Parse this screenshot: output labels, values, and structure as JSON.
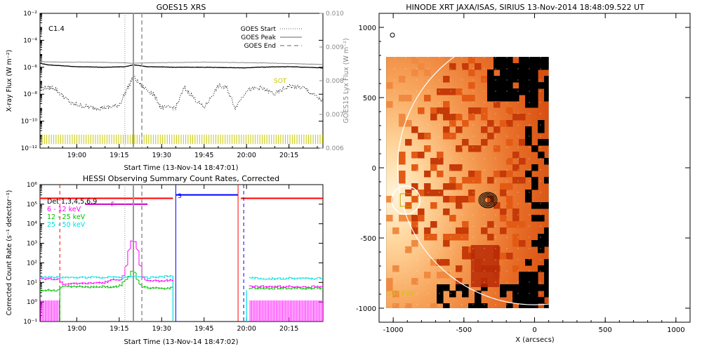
{
  "chart_data": [
    {
      "type": "line",
      "title": "GOES15 XRS",
      "xlabel": "Start Time (13-Nov-14 18:47:01)",
      "ylabel": "X-ray Flux (W m⁻²)",
      "y2label": "GOES15 Lyx Flux (W m⁻²)",
      "yscale": "log",
      "xlim": [
        "18:47",
        "20:27"
      ],
      "ylim": [
        1e-12,
        0.01
      ],
      "y2lim": [
        0.006,
        0.01
      ],
      "xticks": [
        "19:00",
        "19:15",
        "19:30",
        "19:45",
        "20:00",
        "20:15"
      ],
      "yticks": [
        "10⁻¹²",
        "10⁻¹⁰",
        "10⁻⁸",
        "10⁻⁶",
        "10⁻⁴",
        "10⁻²"
      ],
      "y2ticks": [
        "0.006",
        "0.007",
        "0.008",
        "0.009",
        "0.010"
      ],
      "class_label": "C1.4",
      "sot_label": "SOT",
      "legend": [
        {
          "label": "GOES Start",
          "style": "dotted"
        },
        {
          "label": "GOES Peak",
          "style": "solid"
        },
        {
          "label": "GOES End",
          "style": "dashed"
        }
      ],
      "markers": {
        "goes_start": "19:17",
        "goes_peak": "19:20",
        "goes_end": "19:23"
      },
      "series": [
        {
          "key": "lyx",
          "color": "#888888",
          "x": [
            "18:47",
            "18:55",
            "19:05",
            "19:15",
            "19:20",
            "19:30",
            "19:45",
            "20:00",
            "20:15",
            "20:27"
          ],
          "y": [
            2.6e-06,
            2.4e-06,
            2.4e-06,
            2.2e-06,
            2e-06,
            2.2e-06,
            2.4e-06,
            2.2e-06,
            1.9e-06,
            1.6e-06
          ]
        },
        {
          "key": "long",
          "color": "#000000",
          "x": [
            "18:47",
            "18:50",
            "19:00",
            "19:10",
            "19:17",
            "19:20",
            "19:25",
            "19:35",
            "19:45",
            "20:00",
            "20:03",
            "20:15",
            "20:27"
          ],
          "y": [
            2e-06,
            1.5e-06,
            1.1e-06,
            1e-06,
            1.1e-06,
            1.5e-06,
            1.1e-06,
            1e-06,
            1e-06,
            9e-07,
            1e-06,
            1.1e-06,
            9e-07
          ]
        },
        {
          "key": "short",
          "color": "#000000",
          "style": "dotted",
          "x": [
            "18:47",
            "18:52",
            "18:58",
            "19:05",
            "19:10",
            "19:15",
            "19:18",
            "19:20",
            "19:23",
            "19:27",
            "19:30",
            "19:35",
            "19:38",
            "19:42",
            "19:45",
            "19:50",
            "19:53",
            "19:56",
            "20:00",
            "20:05",
            "20:10",
            "20:15",
            "20:20",
            "20:27"
          ],
          "y": [
            3e-08,
            3e-08,
            2e-09,
            1e-09,
            1e-09,
            1.5e-09,
            3e-08,
            2e-07,
            4e-08,
            1e-08,
            1e-09,
            1e-09,
            3e-08,
            4e-09,
            1e-09,
            4e-08,
            3e-08,
            1e-09,
            2e-08,
            3e-08,
            1e-08,
            4e-08,
            3e-08,
            3e-09
          ]
        }
      ],
      "sot_band": {
        "color": "#c8c800",
        "y_range": [
          2e-12,
          1e-11
        ]
      }
    },
    {
      "type": "line",
      "title": "HESSI Observing Summary Count Rates, Corrected",
      "xlabel": "Start Time (13-Nov-14 18:47:02)",
      "ylabel": "Corrected Count Rate (s⁻¹ detector⁻¹)",
      "yscale": "log",
      "xlim": [
        "18:47",
        "20:27"
      ],
      "ylim": [
        0.1,
        1000000.0
      ],
      "xticks": [
        "19:00",
        "19:15",
        "19:30",
        "19:45",
        "20:00",
        "20:15"
      ],
      "yticks": [
        "10⁻¹",
        "10⁰",
        "10¹",
        "10²",
        "10³",
        "10⁴",
        "10⁵",
        "10⁶"
      ],
      "legend": [
        {
          "label": "Det 1,3,4,5,6,9",
          "color": "#000000"
        },
        {
          "label": "6 - 12 keV",
          "color": "#ff00ff"
        },
        {
          "label": "12 - 25 keV",
          "color": "#00c000"
        },
        {
          "label": "25 - 50 keV",
          "color": "#00e0e0"
        }
      ],
      "annotations": [
        "F",
        "S"
      ],
      "markers": {
        "goes_start": "19:17",
        "goes_peak": "19:20",
        "goes_end": "19:23"
      },
      "series": [
        {
          "key": "lo",
          "color": "#ff00ff",
          "x": [
            "18:47",
            "18:54",
            "18:55",
            "19:00",
            "19:05",
            "19:10",
            "19:13",
            "19:15",
            "19:17",
            "19:18",
            "19:19",
            "19:20",
            "19:21",
            "19:22",
            "19:23",
            "19:25",
            "19:30",
            "19:34"
          ],
          "y": [
            15,
            15,
            8,
            9,
            9,
            10,
            15,
            12,
            30,
            150,
            1200,
            1600,
            900,
            200,
            25,
            12,
            12,
            13
          ]
        },
        {
          "key": "mid",
          "color": "#00c000",
          "x": [
            "18:47",
            "18:54",
            "18:55",
            "19:00",
            "19:10",
            "19:15",
            "19:19",
            "19:20",
            "19:21",
            "19:23",
            "19:25",
            "19:30",
            "19:34"
          ],
          "y": [
            4,
            4,
            7,
            6,
            6,
            6,
            25,
            60,
            20,
            6,
            5,
            5,
            5
          ]
        },
        {
          "key": "hi",
          "color": "#00e0e0",
          "x": [
            "18:47",
            "19:00",
            "19:10",
            "19:15",
            "19:20",
            "19:25",
            "19:34"
          ],
          "y": [
            18,
            18,
            18,
            18,
            20,
            18,
            20
          ]
        },
        {
          "key": "lo2",
          "color": "#ff00ff",
          "x": [
            "20:01",
            "20:05",
            "20:15",
            "20:27"
          ],
          "y": [
            6,
            6,
            6,
            6
          ]
        },
        {
          "key": "mid2",
          "color": "#00c000",
          "x": [
            "20:01",
            "20:05",
            "20:15",
            "20:27"
          ],
          "y": [
            5,
            5,
            5,
            5
          ]
        },
        {
          "key": "hi2",
          "color": "#00e0e0",
          "x": [
            "20:01",
            "20:05",
            "20:15",
            "20:27"
          ],
          "y": [
            17,
            16,
            16,
            16
          ]
        }
      ],
      "state_lines": {
        "attenuator": {
          "color": "#ff0000",
          "level": 200000.0,
          "ranges": [
            [
              "18:47",
              "19:34"
            ],
            [
              "19:58",
              "20:27"
            ]
          ]
        },
        "flare_flag": {
          "color": "#cc00cc",
          "level": 100000.0,
          "range": [
            "19:03",
            "19:25"
          ]
        },
        "saa": {
          "color": "#0000ff",
          "level": 300000.0,
          "range": [
            "19:35",
            "19:57"
          ]
        },
        "night_boundaries": [
          "19:35",
          "19:57"
        ],
        "dashed_red": "18:54",
        "dashed_blue": "19:59"
      }
    },
    {
      "type": "heatmap",
      "title": "HINODE XRT JAXA/ISAS, SIRIUS 13-Nov-2014 18:48:09.522 UT",
      "xlabel": "X (arcsecs)",
      "ylabel": "",
      "xlim": [
        -1100,
        1100
      ],
      "ylim": [
        -1100,
        1100
      ],
      "xticks": [
        "-1000",
        "-500",
        "0",
        "500",
        "1000"
      ],
      "yticks": [
        "-1000",
        "-500",
        "0",
        "500",
        "1000"
      ],
      "image_extent_x": [
        -1050,
        100
      ],
      "image_extent_y": [
        -1000,
        790
      ],
      "limb_radius": 969,
      "fov_label": "SOT FOV",
      "fov_circle": {
        "x": -910,
        "y": -230,
        "r": 100
      },
      "contour_center": {
        "x": -330,
        "y": -230
      },
      "colormap": "red-orange"
    }
  ]
}
